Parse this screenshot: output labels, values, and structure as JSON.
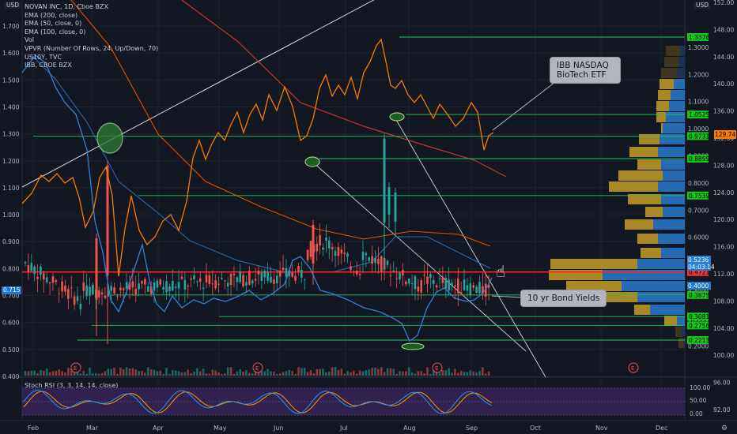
{
  "legend": {
    "title": "NOVAN INC, 1D, Cboe BZX",
    "items": [
      "EMA (200, close)",
      "EMA (50, close, 0)",
      "EMA (100, close, 0)",
      "Vol",
      "VPVR (Number Of Rows, 24, Up/Down, 70)",
      "US10Y, TVC",
      "IBB, CBOE BZX"
    ]
  },
  "rsi_label": "Stoch RSI (3, 3, 14, 14, close)",
  "usd_left": "USD",
  "usd_right": "USD",
  "last_left": "0.715",
  "annotations": {
    "ibb": [
      "IBB NASDAQ",
      "BioTech ETF"
    ],
    "bond": "10 yr Bond Yields"
  },
  "colors": {
    "background": "#131722",
    "up": "#26a69a",
    "down": "#ef5350",
    "ibb": "#f57c00",
    "us10y": "#2f83d6",
    "ema200": "#c0392b",
    "ema100": "#e65100",
    "ema50": "#1f78d1",
    "level": "#22c55e",
    "support": "#ff2222",
    "rsi_k": "#2196f3",
    "rsi_d": "#ff9800",
    "rsi_band": "#4a2a72"
  },
  "chart_data": {
    "type": "candlestick",
    "symbol": "NOVAN INC, 1D, Cboe BZX",
    "x_labels": [
      "Feb",
      "Mar",
      "Apr",
      "May",
      "Jun",
      "Jul",
      "Aug",
      "Sep",
      "Oct",
      "Nov",
      "Dec"
    ],
    "left_axis": {
      "ticks": [
        "1.700",
        "1.600",
        "1.500",
        "1.400",
        "1.300",
        "1.200",
        "1.100",
        "1.000",
        "0.900",
        "0.800",
        "0.700",
        "0.600",
        "0.500",
        "0.400"
      ],
      "range": [
        0.4,
        1.76
      ]
    },
    "right_axis_price": {
      "ticks": [
        "1.3000",
        "1.2000",
        "1.1000",
        "1.0000",
        "0.9000",
        "0.8000",
        "0.7000",
        "0.6000",
        "0.5000",
        "0.4000",
        "0.3000",
        "0.2000"
      ],
      "level_labels": [
        "1.3376",
        "1.0525",
        "0.9731",
        "0.8899",
        "0.7539",
        "0.5236",
        "04:03:14",
        "0.4721",
        "0.4000",
        "0.3875",
        "0.3081",
        "0.2756",
        "0.2213"
      ]
    },
    "right_axis_ibb": {
      "ticks": [
        "152.00",
        "148.00",
        "144.00",
        "140.00",
        "136.00",
        "132.00",
        "128.00",
        "124.00",
        "120.00",
        "116.00",
        "112.00",
        "108.00",
        "104.00",
        "100.00",
        "96.00",
        "92.00"
      ],
      "last": "129.74"
    },
    "horizontal_levels": [
      {
        "label": "1.3376",
        "value": 1.3376,
        "start_month": 5.85
      },
      {
        "label": "1.0525",
        "value": 1.0525,
        "start_month": 5.95
      },
      {
        "label": "0.9731",
        "value": 0.9731,
        "start_month": 0.0
      },
      {
        "label": "0.8899",
        "value": 0.8899,
        "start_month": 4.6
      },
      {
        "label": "0.7539",
        "value": 0.7539,
        "start_month": 1.7
      },
      {
        "label": "0.4721",
        "value": 0.4721,
        "start_month": 0.0,
        "support": true
      },
      {
        "label": "0.3875",
        "value": 0.3875,
        "start_month": 1.3
      },
      {
        "label": "0.3081",
        "value": 0.3081,
        "start_month": 3.0
      },
      {
        "label": "0.2756",
        "value": 0.2756,
        "start_month": 1.0
      },
      {
        "label": "0.2213",
        "value": 0.2213,
        "start_month": 0.75
      }
    ],
    "rsi": {
      "ticks": [
        "50.00",
        "0.00",
        "100.00"
      ]
    },
    "earnings_markers": [
      "E",
      "E",
      "E",
      "E",
      "E"
    ]
  }
}
